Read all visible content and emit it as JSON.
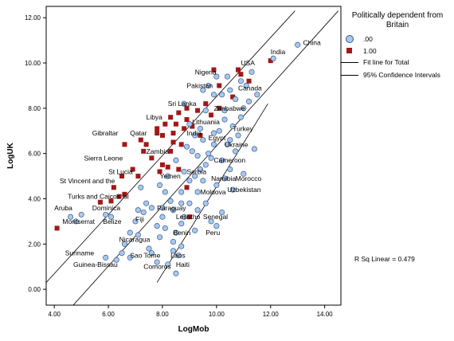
{
  "chart_data": {
    "type": "scatter",
    "xlabel": "LogMob",
    "ylabel": "LogUK",
    "xlim": [
      3.7,
      14.6
    ],
    "ylim": [
      -0.7,
      12.5
    ],
    "xticks": [
      "4.00",
      "6.00",
      "8.00",
      "10.00",
      "12.00",
      "14.00"
    ],
    "yticks": [
      "0.00",
      "2.00",
      "4.00",
      "6.00",
      "8.00",
      "10.00",
      "12.00"
    ],
    "legend": {
      "title": "Politically dependent from Britain",
      "placement": "right",
      "items": [
        {
          "label": ".00",
          "marker": "circle",
          "color": "#a8c8ee"
        },
        {
          "label": "1.00",
          "marker": "square",
          "color": "#a01818"
        },
        {
          "label": "Fit line for Total",
          "marker": "line"
        },
        {
          "label": "95% Confidence Intervals",
          "marker": "line"
        }
      ]
    },
    "annotation": "R Sq Linear = 0.479",
    "lines": {
      "fit": [
        [
          4.7,
          -0.7
        ],
        [
          14.5,
          12.3
        ]
      ],
      "upper": [
        [
          3.7,
          0.3
        ],
        [
          12.9,
          12.3
        ]
      ],
      "lower": [
        [
          7.8,
          0.3
        ],
        [
          11.9,
          8.2
        ]
      ]
    },
    "series": [
      {
        "marker": "square",
        "color": "#a01818",
        "points": [
          [
            4.1,
            2.7
          ],
          [
            5.7,
            3.85
          ],
          [
            6.1,
            3.9
          ],
          [
            6.4,
            4.1
          ],
          [
            6.2,
            4.5
          ],
          [
            6.6,
            4.2
          ],
          [
            6.5,
            5.0
          ],
          [
            6.9,
            5.3
          ],
          [
            7.1,
            5.0
          ],
          [
            7.3,
            6.1
          ],
          [
            7.6,
            5.8
          ],
          [
            7.9,
            5.2
          ],
          [
            8.2,
            5.4
          ],
          [
            6.6,
            6.4
          ],
          [
            7.2,
            6.6
          ],
          [
            7.4,
            6.4
          ],
          [
            7.8,
            6.9
          ],
          [
            8.0,
            6.8
          ],
          [
            8.4,
            6.5
          ],
          [
            8.7,
            6.4
          ],
          [
            7.8,
            7.1
          ],
          [
            8.1,
            7.3
          ],
          [
            8.3,
            7.6
          ],
          [
            8.6,
            7.8
          ],
          [
            8.5,
            7.3
          ],
          [
            8.9,
            7.5
          ],
          [
            9.1,
            7.2
          ],
          [
            8.9,
            8.0
          ],
          [
            9.3,
            7.9
          ],
          [
            9.6,
            8.2
          ],
          [
            9.8,
            7.7
          ],
          [
            10.1,
            8.0
          ],
          [
            9.9,
            9.7
          ],
          [
            10.1,
            9.0
          ],
          [
            10.6,
            8.5
          ],
          [
            10.9,
            9.5
          ],
          [
            11.2,
            9.2
          ],
          [
            10.8,
            9.7
          ],
          [
            12.0,
            10.1
          ],
          [
            8.3,
            6.1
          ],
          [
            8.6,
            5.3
          ],
          [
            8.9,
            4.5
          ],
          [
            9.0,
            3.2
          ],
          [
            8.4,
            6.9
          ],
          [
            8.8,
            7.1
          ],
          [
            9.4,
            6.8
          ],
          [
            8.0,
            5.5
          ]
        ]
      },
      {
        "marker": "circle",
        "color": "#a8c8ee",
        "points": [
          [
            4.6,
            3.2
          ],
          [
            4.8,
            3.0
          ],
          [
            5.0,
            3.3
          ],
          [
            5.9,
            1.4
          ],
          [
            5.9,
            3.3
          ],
          [
            6.1,
            3.2
          ],
          [
            6.3,
            1.3
          ],
          [
            6.5,
            1.6
          ],
          [
            6.8,
            1.4
          ],
          [
            6.6,
            2.0
          ],
          [
            6.8,
            2.5
          ],
          [
            7.1,
            2.4
          ],
          [
            7.0,
            3.0
          ],
          [
            7.1,
            3.5
          ],
          [
            7.3,
            3.4
          ],
          [
            7.2,
            4.5
          ],
          [
            7.4,
            3.8
          ],
          [
            7.6,
            3.6
          ],
          [
            7.5,
            1.8
          ],
          [
            7.6,
            1.6
          ],
          [
            7.8,
            1.2
          ],
          [
            7.9,
            2.3
          ],
          [
            8.1,
            2.7
          ],
          [
            8.0,
            3.2
          ],
          [
            8.3,
            3.9
          ],
          [
            8.1,
            4.3
          ],
          [
            8.4,
            3.5
          ],
          [
            8.4,
            1.7
          ],
          [
            8.6,
            1.5
          ],
          [
            8.7,
            1.9
          ],
          [
            8.5,
            2.5
          ],
          [
            8.7,
            2.9
          ],
          [
            8.5,
            0.7
          ],
          [
            8.2,
            1.1
          ],
          [
            8.8,
            3.2
          ],
          [
            8.7,
            3.8
          ],
          [
            9.0,
            3.8
          ],
          [
            9.0,
            4.8
          ],
          [
            8.8,
            5.2
          ],
          [
            9.3,
            4.3
          ],
          [
            9.2,
            5.0
          ],
          [
            9.5,
            4.8
          ],
          [
            9.6,
            5.5
          ],
          [
            9.4,
            5.3
          ],
          [
            9.7,
            6.0
          ],
          [
            9.3,
            5.9
          ],
          [
            9.5,
            6.6
          ],
          [
            9.1,
            6.1
          ],
          [
            9.3,
            3.5
          ],
          [
            9.8,
            3.0
          ],
          [
            10.2,
            3.4
          ],
          [
            10.0,
            4.6
          ],
          [
            10.3,
            4.9
          ],
          [
            10.2,
            5.7
          ],
          [
            10.5,
            5.3
          ],
          [
            10.7,
            6.1
          ],
          [
            10.4,
            6.4
          ],
          [
            10.8,
            6.8
          ],
          [
            10.6,
            7.2
          ],
          [
            10.3,
            7.5
          ],
          [
            10.1,
            7.0
          ],
          [
            9.9,
            6.4
          ],
          [
            10.9,
            7.6
          ],
          [
            11.0,
            8.0
          ],
          [
            10.7,
            8.4
          ],
          [
            10.5,
            8.8
          ],
          [
            10.2,
            8.6
          ],
          [
            11.2,
            8.3
          ],
          [
            11.5,
            8.6
          ],
          [
            11.1,
            9.0
          ],
          [
            10.4,
            9.4
          ],
          [
            10.9,
            9.2
          ],
          [
            11.3,
            9.6
          ],
          [
            13.0,
            10.8
          ],
          [
            12.1,
            10.2
          ],
          [
            9.6,
            7.9
          ],
          [
            9.9,
            8.6
          ],
          [
            8.9,
            6.3
          ],
          [
            9.2,
            6.8
          ],
          [
            9.0,
            7.3
          ],
          [
            8.8,
            8.2
          ],
          [
            9.5,
            8.8
          ],
          [
            9.7,
            9.0
          ],
          [
            9.4,
            7.1
          ],
          [
            8.5,
            5.7
          ],
          [
            8.2,
            5.0
          ],
          [
            7.9,
            4.6
          ],
          [
            8.7,
            4.3
          ],
          [
            9.6,
            3.8
          ],
          [
            9.8,
            5.8
          ],
          [
            10.6,
            4.4
          ],
          [
            11.0,
            5.1
          ],
          [
            11.4,
            6.2
          ],
          [
            10.0,
            2.8
          ],
          [
            8.4,
            2.1
          ],
          [
            8.0,
            3.6
          ],
          [
            7.8,
            2.8
          ],
          [
            10.3,
            7.9
          ],
          [
            10.0,
            9.4
          ],
          [
            9.2,
            2.6
          ],
          [
            9.9,
            6.9
          ],
          [
            10.5,
            6.6
          ]
        ]
      }
    ],
    "labels": [
      {
        "text": "China",
        "x": 13.2,
        "y": 10.9
      },
      {
        "text": "India",
        "x": 12.0,
        "y": 10.5
      },
      {
        "text": "Nigeria",
        "x": 9.2,
        "y": 9.6
      },
      {
        "text": "USA",
        "x": 10.9,
        "y": 10.0
      },
      {
        "text": "Pakistan",
        "x": 8.9,
        "y": 9.0
      },
      {
        "text": "Canada",
        "x": 10.8,
        "y": 8.9
      },
      {
        "text": "Sri Lanka",
        "x": 8.2,
        "y": 8.2
      },
      {
        "text": "Zimbabwe",
        "x": 9.9,
        "y": 8.0
      },
      {
        "text": "Libya",
        "x": 7.4,
        "y": 7.6
      },
      {
        "text": "Lithuania",
        "x": 9.1,
        "y": 7.4
      },
      {
        "text": "India",
        "x": 8.9,
        "y": 6.9
      },
      {
        "text": "Turkey",
        "x": 10.6,
        "y": 7.1
      },
      {
        "text": "Gibraltar",
        "x": 5.4,
        "y": 6.9
      },
      {
        "text": "Qatar",
        "x": 6.8,
        "y": 6.9
      },
      {
        "text": "Egypt",
        "x": 9.7,
        "y": 6.7
      },
      {
        "text": "Ukraine",
        "x": 10.3,
        "y": 6.4
      },
      {
        "text": "Zambia",
        "x": 7.4,
        "y": 6.1
      },
      {
        "text": "Sierra Leone",
        "x": 5.1,
        "y": 5.8
      },
      {
        "text": "Cameroon",
        "x": 9.9,
        "y": 5.7
      },
      {
        "text": "St Lucia",
        "x": 6.0,
        "y": 5.2
      },
      {
        "text": "Serbia",
        "x": 8.9,
        "y": 5.2
      },
      {
        "text": "Yemen",
        "x": 7.9,
        "y": 5.0
      },
      {
        "text": "Namibia",
        "x": 9.8,
        "y": 4.9
      },
      {
        "text": "Morocco",
        "x": 10.7,
        "y": 4.9
      },
      {
        "text": "St Vincent and the",
        "x": 4.2,
        "y": 4.8
      },
      {
        "text": "Moldova",
        "x": 9.4,
        "y": 4.3
      },
      {
        "text": "Uzbekistan",
        "x": 10.4,
        "y": 4.4
      },
      {
        "text": "Turks and Caicos Isl",
        "x": 4.5,
        "y": 4.1
      },
      {
        "text": "Paraguay",
        "x": 7.8,
        "y": 3.6
      },
      {
        "text": "Aruba",
        "x": 4.0,
        "y": 3.6
      },
      {
        "text": "Dominica",
        "x": 5.4,
        "y": 3.6
      },
      {
        "text": "Fiji",
        "x": 7.0,
        "y": 3.1
      },
      {
        "text": "Lesotho",
        "x": 8.5,
        "y": 3.2
      },
      {
        "text": "Senegal",
        "x": 9.5,
        "y": 3.2
      },
      {
        "text": "Montserrat",
        "x": 4.3,
        "y": 3.0
      },
      {
        "text": "Belize",
        "x": 5.8,
        "y": 3.0
      },
      {
        "text": "Benin",
        "x": 8.4,
        "y": 2.5
      },
      {
        "text": "Peru",
        "x": 9.6,
        "y": 2.5
      },
      {
        "text": "Nicaragua",
        "x": 6.4,
        "y": 2.2
      },
      {
        "text": "Suriname",
        "x": 4.4,
        "y": 1.6
      },
      {
        "text": "Sao Tome",
        "x": 6.8,
        "y": 1.5
      },
      {
        "text": "Laos",
        "x": 8.3,
        "y": 1.5
      },
      {
        "text": "Guinea-Bissau",
        "x": 4.7,
        "y": 1.1
      },
      {
        "text": "Comoros",
        "x": 7.3,
        "y": 1.0
      },
      {
        "text": "Haiti",
        "x": 8.5,
        "y": 1.1
      }
    ]
  }
}
